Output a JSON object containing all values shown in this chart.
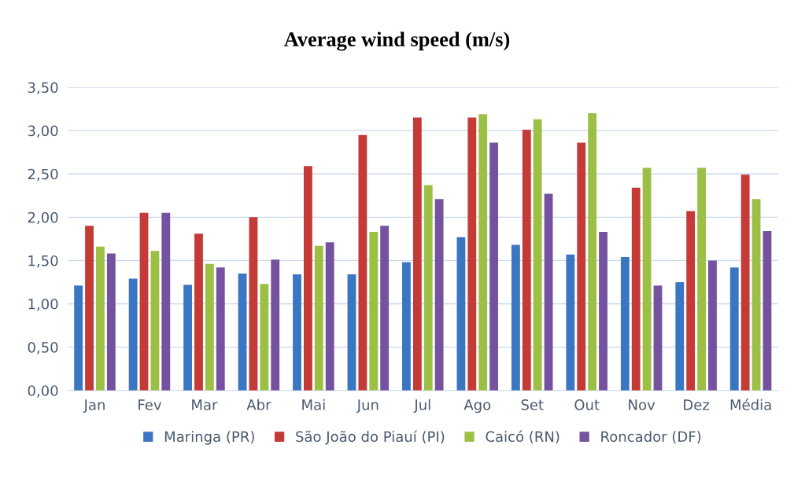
{
  "chart_data": {
    "type": "bar",
    "title": "Average wind speed (m/s)",
    "categories": [
      "Jan",
      "Fev",
      "Mar",
      "Abr",
      "Mai",
      "Jun",
      "Jul",
      "Ago",
      "Set",
      "Out",
      "Nov",
      "Dez",
      "Média"
    ],
    "series": [
      {
        "name": "Maringa (PR)",
        "color": "#3b76c2",
        "values": [
          1.21,
          1.29,
          1.22,
          1.35,
          1.34,
          1.34,
          1.48,
          1.77,
          1.68,
          1.57,
          1.54,
          1.25,
          1.42
        ]
      },
      {
        "name": "São João do Piauí (PI)",
        "color": "#c43a36",
        "values": [
          1.9,
          2.05,
          1.81,
          2.0,
          2.59,
          2.95,
          3.15,
          3.15,
          3.01,
          2.86,
          2.34,
          2.07,
          2.49
        ]
      },
      {
        "name": "Caicó (RN)",
        "color": "#9bc045",
        "values": [
          1.66,
          1.61,
          1.46,
          1.23,
          1.67,
          1.83,
          2.37,
          3.19,
          3.13,
          3.2,
          2.57,
          2.57,
          2.21
        ]
      },
      {
        "name": "Roncador (DF)",
        "color": "#7452a0",
        "values": [
          1.58,
          2.05,
          1.42,
          1.51,
          1.71,
          1.9,
          2.21,
          2.86,
          2.27,
          1.83,
          1.21,
          1.5,
          1.84
        ]
      }
    ],
    "ylim": [
      0,
      3.5
    ],
    "yticks": [
      {
        "value": 0,
        "label": "0,00"
      },
      {
        "value": 0.5,
        "label": "0,50"
      },
      {
        "value": 1,
        "label": "1,00"
      },
      {
        "value": 1.5,
        "label": "1,50"
      },
      {
        "value": 2,
        "label": "2,00"
      },
      {
        "value": 2.5,
        "label": "2,50"
      },
      {
        "value": 3,
        "label": "3,00"
      },
      {
        "value": 3.5,
        "label": "3,50"
      }
    ],
    "grid": "y",
    "legend": "bottom"
  }
}
